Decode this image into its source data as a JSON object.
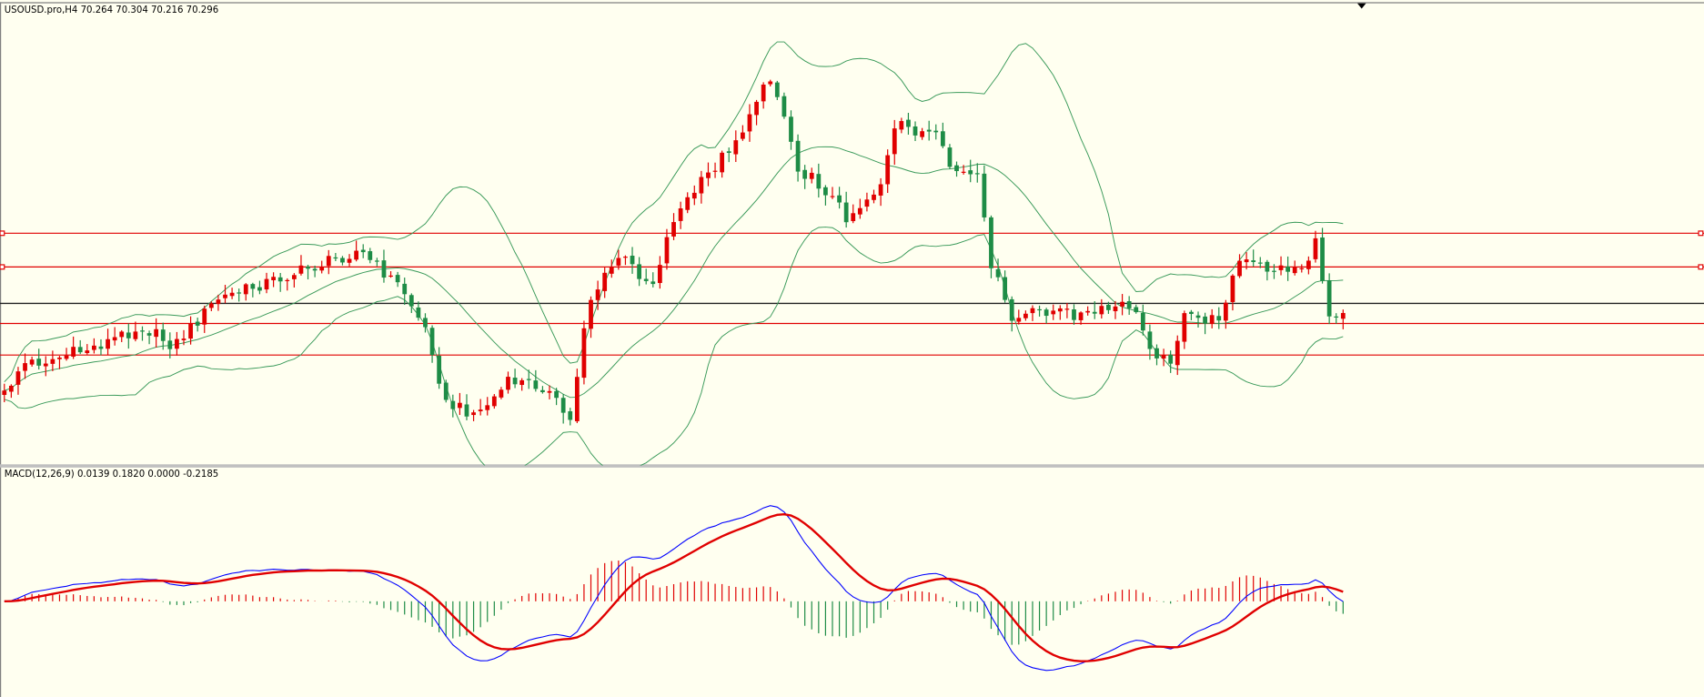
{
  "header": {
    "title": "USOUSD.pro,H4  70.264 70.304 70.216 70.296"
  },
  "indicator": {
    "label": "MACD(12,26,9) 0.0139 0.1820 0.0000 -0.2185"
  }
}
